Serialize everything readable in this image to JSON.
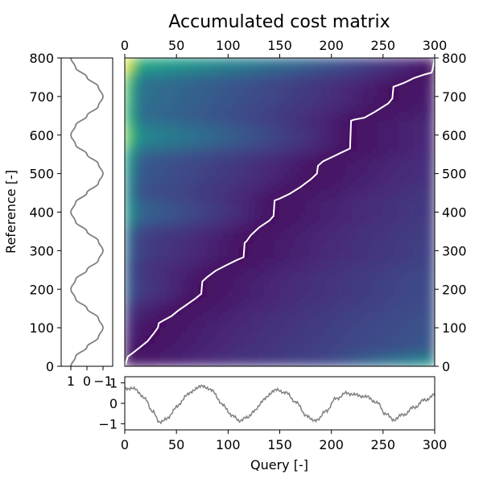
{
  "chart_data": [
    {
      "type": "heatmap",
      "title": "Accumulated cost matrix",
      "xlabel": "",
      "ylabel": "",
      "xlim": [
        0,
        300
      ],
      "ylim": [
        0,
        800
      ],
      "xticks": [
        "0",
        "50",
        "100",
        "150",
        "200",
        "250",
        "300"
      ],
      "yticks": [
        "0",
        "100",
        "200",
        "300",
        "400",
        "500",
        "600",
        "700",
        "800"
      ],
      "colormap": "viridis",
      "grid": false,
      "warping_path_color": "#ffffff",
      "warping_path": {
        "x": [
          0,
          3,
          8,
          15,
          22,
          28,
          32,
          33,
          38,
          45,
          52,
          60,
          68,
          74,
          75,
          80,
          88,
          98,
          108,
          115,
          116,
          118,
          122,
          130,
          140,
          144,
          145,
          150,
          160,
          170,
          180,
          186,
          187,
          192,
          200,
          210,
          218,
          219,
          222,
          232,
          242,
          255,
          259,
          260,
          270,
          280,
          290,
          297,
          298,
          300
        ],
        "y": [
          0,
          25,
          35,
          50,
          65,
          85,
          100,
          112,
          120,
          130,
          145,
          160,
          175,
          188,
          220,
          232,
          248,
          262,
          275,
          283,
          320,
          325,
          340,
          360,
          378,
          390,
          430,
          435,
          448,
          465,
          485,
          500,
          520,
          532,
          542,
          555,
          565,
          637,
          640,
          645,
          660,
          682,
          695,
          725,
          735,
          748,
          757,
          762,
          770,
          800
        ]
      }
    },
    {
      "type": "line",
      "xlabel": "",
      "ylabel": "Reference [-]",
      "orientation": "vertical",
      "xlim": [
        1.6,
        -1.6
      ],
      "ylim": [
        0,
        800
      ],
      "xticks": [
        "1",
        "0",
        "−1"
      ],
      "series_color": "#808080",
      "series": [
        {
          "y": [
            0,
            25,
            50,
            75,
            100,
            125,
            150,
            175,
            200,
            225,
            250,
            275,
            300,
            325,
            350,
            375,
            400,
            425,
            450,
            475,
            500,
            525,
            550,
            575,
            600,
            625,
            650,
            675,
            700,
            725,
            750,
            775,
            800
          ],
          "values": [
            1.0,
            0.71,
            0.0,
            -0.71,
            -1.0,
            -0.71,
            0.0,
            0.71,
            1.0,
            0.71,
            0.0,
            -0.71,
            -1.0,
            -0.71,
            0.0,
            0.71,
            1.0,
            0.71,
            0.0,
            -0.71,
            -1.0,
            -0.71,
            0.0,
            0.71,
            1.0,
            0.71,
            0.0,
            -0.71,
            -1.0,
            -0.71,
            0.0,
            0.71,
            1.0
          ]
        }
      ]
    },
    {
      "type": "line",
      "xlabel": "Query [-]",
      "ylabel": "",
      "xlim": [
        0,
        300
      ],
      "ylim": [
        -1.3,
        1.3
      ],
      "xticks": [
        "0",
        "50",
        "100",
        "150",
        "200",
        "250",
        "300"
      ],
      "yticks": [
        "1",
        "0",
        "−1"
      ],
      "series_color": "#808080",
      "series": [
        {
          "x": [
            0,
            10,
            20,
            27,
            33,
            40,
            50,
            60,
            70,
            76,
            85,
            95,
            105,
            112,
            118,
            125,
            135,
            145,
            155,
            165,
            175,
            182,
            188,
            195,
            205,
            215,
            225,
            235,
            245,
            252,
            260,
            270,
            280,
            290,
            300
          ],
          "values": [
            0.75,
            0.7,
            0.2,
            -0.4,
            -0.9,
            -0.8,
            -0.2,
            0.4,
            0.75,
            0.85,
            0.6,
            -0.1,
            -0.65,
            -0.85,
            -0.7,
            -0.4,
            0.2,
            0.65,
            0.55,
            0.1,
            -0.55,
            -0.85,
            -0.75,
            -0.35,
            0.25,
            0.5,
            0.4,
            0.3,
            0.0,
            -0.5,
            -0.8,
            -0.55,
            -0.2,
            0.15,
            0.4
          ]
        }
      ]
    }
  ]
}
